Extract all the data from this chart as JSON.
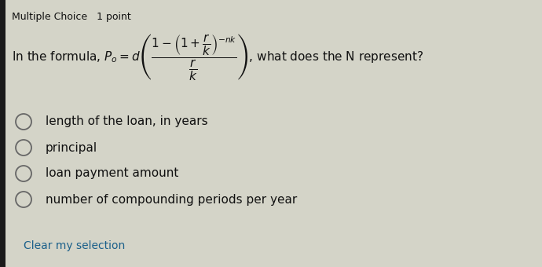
{
  "header": "Multiple Choice   1 point",
  "options": [
    "length of the loan, in years",
    "principal",
    "loan payment amount",
    "number of compounding periods per year"
  ],
  "footer": "Clear my selection",
  "bg_color": "#d4d4c8",
  "left_bar_color": "#1a1a1a",
  "header_color": "#111111",
  "text_color": "#111111",
  "footer_color": "#1a5f8a",
  "circle_color": "#666666",
  "header_fontsize": 9,
  "question_fontsize": 11,
  "option_fontsize": 11,
  "footer_fontsize": 10
}
